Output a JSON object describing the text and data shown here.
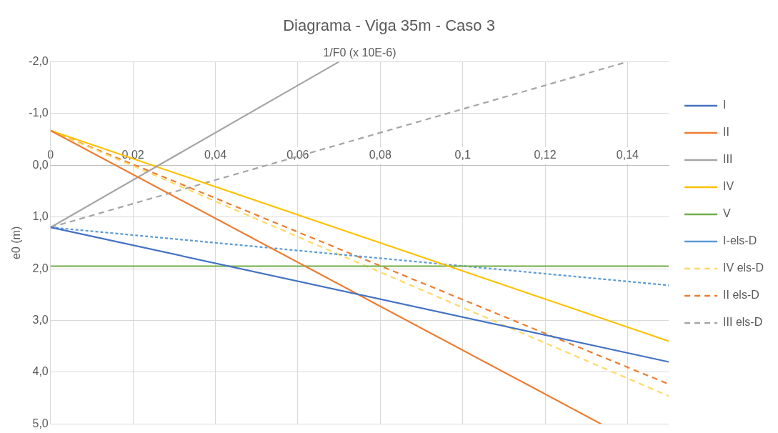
{
  "chart_data": {
    "type": "line",
    "title": "Diagrama - Viga 35m - Caso 3",
    "xlabel": "1/F0 (x 10E-6)",
    "ylabel": "e0 (m)",
    "xlim": [
      0,
      0.15
    ],
    "xticks": [
      0,
      {
        "value": 0.02,
        "label": "0,02"
      },
      {
        "value": 0.04,
        "label": "0,04"
      },
      {
        "value": 0.06,
        "label": "0,06"
      },
      {
        "value": 0.08,
        "label": "0,08"
      },
      {
        "value": 0.1,
        "label": "0,1"
      },
      {
        "value": 0.12,
        "label": "0,12"
      },
      {
        "value": 0.14,
        "label": "0,14"
      }
    ],
    "ylim": [
      5,
      -2
    ],
    "yticks": [
      {
        "value": -2,
        "label": "-2,0"
      },
      {
        "value": -1,
        "label": "-1,0"
      },
      {
        "value": 0,
        "label": "0,0"
      },
      {
        "value": 1,
        "label": "1,0"
      },
      {
        "value": 2,
        "label": "2,0"
      },
      {
        "value": 3,
        "label": "3,0"
      },
      {
        "value": 4,
        "label": "4,0"
      },
      {
        "value": 5,
        "label": "5,0"
      }
    ],
    "grid": true,
    "legend": "right",
    "marker": "none",
    "series": [
      {
        "name": "I",
        "color": "#4472c4",
        "x": [
          0,
          0.15
        ],
        "values": [
          1.2,
          3.8
        ],
        "line_style": "solid"
      },
      {
        "name": "II",
        "color": "#ed7d31",
        "x": [
          0,
          0.1336
        ],
        "values": [
          -0.67,
          5
        ],
        "line_style": "solid"
      },
      {
        "name": "III",
        "color": "#a5a5a5",
        "x": [
          0,
          0.07
        ],
        "values": [
          1.2,
          -2
        ],
        "line_style": "solid"
      },
      {
        "name": "IV",
        "color": "#ffc000",
        "x": [
          0,
          0.15
        ],
        "values": [
          -0.67,
          3.4
        ],
        "line_style": "solid"
      },
      {
        "name": "V",
        "color": "#70ad47",
        "x": [
          0,
          0.15
        ],
        "values": [
          1.95,
          1.95
        ],
        "line_style": "solid"
      },
      {
        "name": "I-els-D",
        "color": "#5b9bd5",
        "x": [
          0,
          0.15
        ],
        "values": [
          1.2,
          2.32
        ],
        "line_style": "dotted"
      },
      {
        "name": "IV els-D",
        "color": "#ffd966",
        "x": [
          0,
          0.15
        ],
        "values": [
          -0.67,
          4.46
        ],
        "line_style": "dashed"
      },
      {
        "name": "II els-D",
        "color": "#ed7d31",
        "x": [
          0,
          0.15
        ],
        "values": [
          -0.67,
          4.23
        ],
        "line_style": "dashed"
      },
      {
        "name": "III els-D",
        "color": "#a5a5a5",
        "x": [
          0,
          0.14
        ],
        "values": [
          1.2,
          -2
        ],
        "line_style": "dashed"
      }
    ]
  }
}
